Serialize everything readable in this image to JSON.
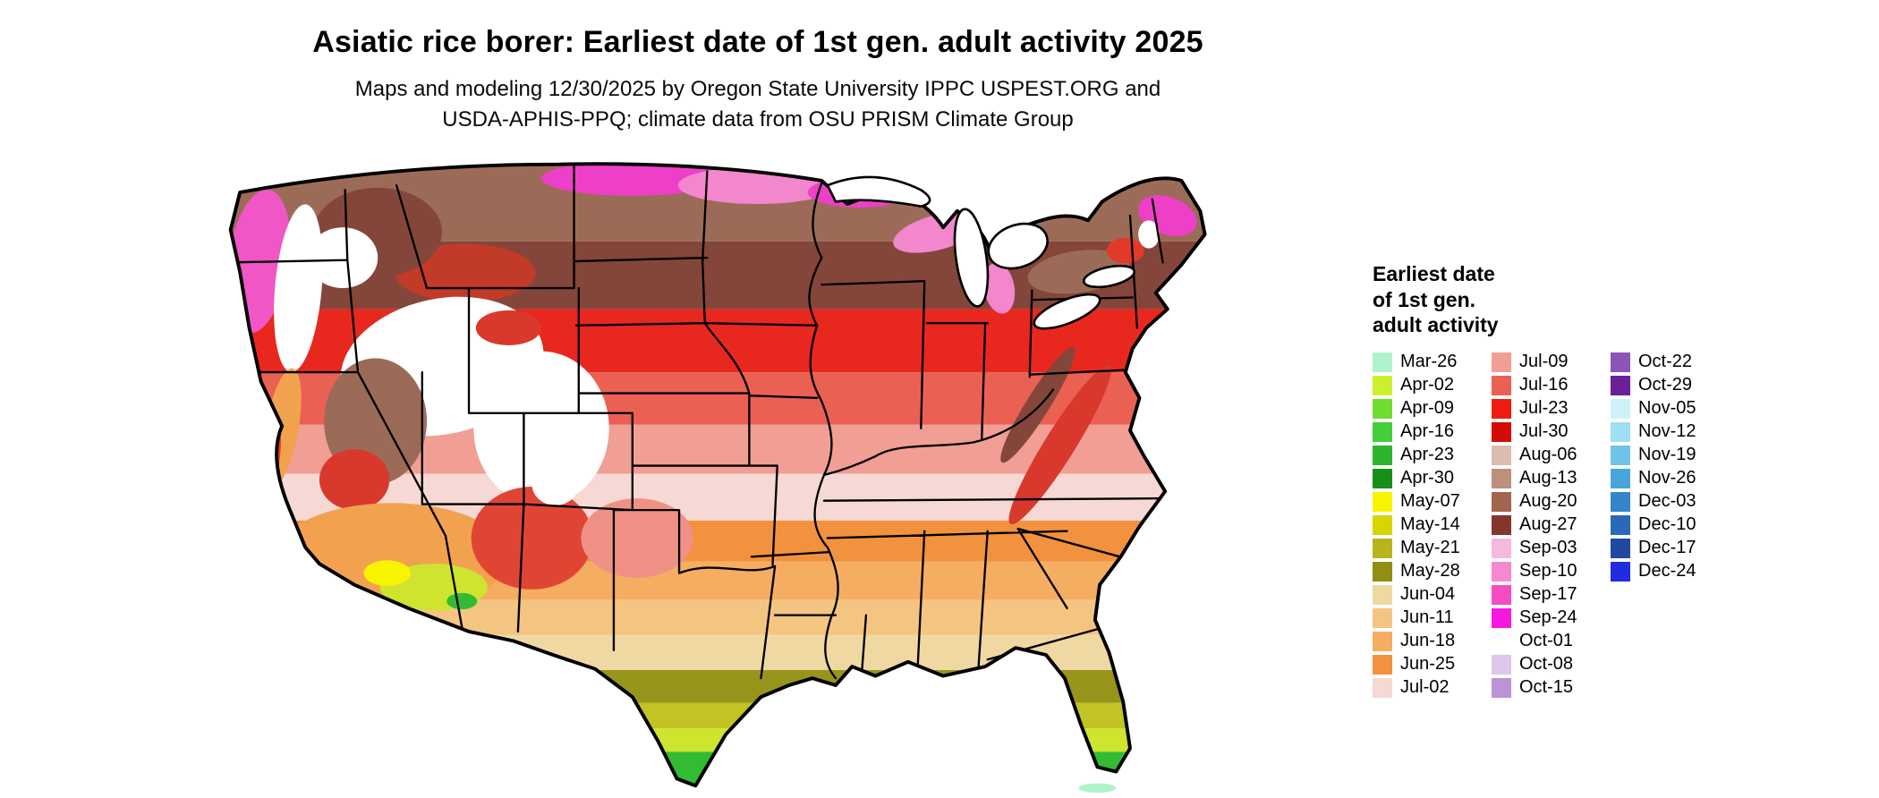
{
  "title": "Asiatic rice borer: Earliest date of 1st gen. adult activity 2025",
  "subtitle_line1": "Maps and modeling 12/30/2025 by Oregon State University IPPC USPEST.ORG and",
  "subtitle_line2": "USDA-APHIS-PPQ; climate data from OSU PRISM Climate Group",
  "map": {
    "alt": "Choropleth raster map of the continental United States with black state borders, colored by earliest date of first-generation adult activity"
  },
  "legend": {
    "title_line1": "Earliest date",
    "title_line2": "of 1st gen.",
    "title_line3": "adult activity",
    "columns": [
      [
        {
          "label": "Mar-26",
          "color": "#aef3c9"
        },
        {
          "label": "Apr-02",
          "color": "#cdef2e"
        },
        {
          "label": "Apr-09",
          "color": "#6edd30"
        },
        {
          "label": "Apr-16",
          "color": "#44cf3a"
        },
        {
          "label": "Apr-23",
          "color": "#2eb52e"
        },
        {
          "label": "Apr-30",
          "color": "#188f18"
        },
        {
          "label": "May-07",
          "color": "#f8f400"
        },
        {
          "label": "May-14",
          "color": "#d9d400"
        },
        {
          "label": "May-21",
          "color": "#b8b41e"
        },
        {
          "label": "May-28",
          "color": "#928e14"
        },
        {
          "label": "Jun-04",
          "color": "#f0d8a2"
        },
        {
          "label": "Jun-11",
          "color": "#f4c481"
        },
        {
          "label": "Jun-18",
          "color": "#f5ad62"
        },
        {
          "label": "Jun-25",
          "color": "#f2923e"
        },
        {
          "label": "Jul-02",
          "color": "#f6d9d4"
        }
      ],
      [
        {
          "label": "Jul-09",
          "color": "#f19e94"
        },
        {
          "label": "Jul-16",
          "color": "#ea6154"
        },
        {
          "label": "Jul-23",
          "color": "#ee1c12"
        },
        {
          "label": "Jul-30",
          "color": "#d40b06"
        },
        {
          "label": "Aug-06",
          "color": "#dcbcae"
        },
        {
          "label": "Aug-13",
          "color": "#bd8f7d"
        },
        {
          "label": "Aug-20",
          "color": "#a2654f"
        },
        {
          "label": "Aug-27",
          "color": "#84362c"
        },
        {
          "label": "Sep-03",
          "color": "#f6b9de"
        },
        {
          "label": "Sep-10",
          "color": "#f489cf"
        },
        {
          "label": "Sep-17",
          "color": "#f54cc1"
        },
        {
          "label": "Sep-24",
          "color": "#f617e2"
        },
        {
          "label": "Oct-01",
          "color": "#ffffff"
        },
        {
          "label": "Oct-08",
          "color": "#dcc6ea"
        },
        {
          "label": "Oct-15",
          "color": "#bb93d6"
        }
      ],
      [
        {
          "label": "Oct-22",
          "color": "#8e55b8"
        },
        {
          "label": "Oct-29",
          "color": "#6b1f99"
        },
        {
          "label": "Nov-05",
          "color": "#cdf2fa"
        },
        {
          "label": "Nov-12",
          "color": "#9fdef3"
        },
        {
          "label": "Nov-19",
          "color": "#6fc3e8"
        },
        {
          "label": "Nov-26",
          "color": "#47a5da"
        },
        {
          "label": "Dec-03",
          "color": "#3585cb"
        },
        {
          "label": "Dec-10",
          "color": "#2a68b8"
        },
        {
          "label": "Dec-17",
          "color": "#2049a4"
        },
        {
          "label": "Dec-24",
          "color": "#1f2de0"
        }
      ]
    ]
  }
}
